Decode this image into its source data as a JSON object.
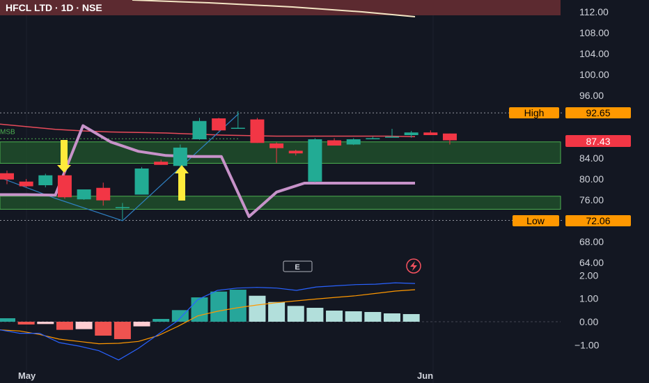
{
  "header": {
    "title": "HFCL LTD · 1D · NSE"
  },
  "price_axis": {
    "labels": [
      "112.00",
      "108.00",
      "104.00",
      "100.00",
      "96.00",
      "84.00",
      "80.00",
      "76.00",
      "68.00",
      "64.00"
    ]
  },
  "osc_axis": {
    "labels": [
      "2.00",
      "1.00",
      "0.00",
      "−1.00"
    ]
  },
  "time_axis": {
    "labels": [
      "May",
      "Jun"
    ]
  },
  "levels": {
    "high": {
      "label": "High",
      "value": "92.65"
    },
    "low": {
      "label": "Low",
      "value": "72.06"
    },
    "current": {
      "value": "87.43"
    }
  },
  "markers": {
    "msb_label": "MSB",
    "event_badge": "E"
  },
  "colors": {
    "background": "#131722",
    "up": "#22ab94",
    "down": "#f23645",
    "zone_fill": "#1f4a2a",
    "zone_border": "#4caf50",
    "tag_orange": "#ff9800",
    "current_tag": "#f23645",
    "ma_line": "#e84b5a",
    "purple_line": "#c792c9",
    "structure_line": "#2f82c4",
    "hist_dark_teal": "#26a69a",
    "hist_light_teal": "#b2dfdb",
    "hist_red": "#ef5350",
    "hist_light_red": "#ffcdd2",
    "osc_fast": "#2962ff",
    "osc_slow": "#ff9800",
    "arrow": "#ffeb3b"
  },
  "chart_data": [
    {
      "type": "candlestick",
      "title": "HFCL LTD · 1D · NSE",
      "ylim": [
        60.5,
        113.3
      ],
      "candles": [
        {
          "o": 81.1,
          "h": 81.6,
          "l": 79.0,
          "c": 79.9
        },
        {
          "o": 79.5,
          "h": 80.0,
          "l": 78.4,
          "c": 78.6
        },
        {
          "o": 78.8,
          "h": 81.0,
          "l": 78.4,
          "c": 80.7
        },
        {
          "o": 80.7,
          "h": 81.6,
          "l": 76.2,
          "c": 76.5
        },
        {
          "o": 76.1,
          "h": 78.0,
          "l": 76.0,
          "c": 78.0
        },
        {
          "o": 78.3,
          "h": 79.3,
          "l": 74.9,
          "c": 75.9
        },
        {
          "o": 74.4,
          "h": 75.4,
          "l": 72.2,
          "c": 74.6
        },
        {
          "o": 77.0,
          "h": 82.3,
          "l": 77.0,
          "c": 82.0
        },
        {
          "o": 83.3,
          "h": 83.7,
          "l": 82.7,
          "c": 82.7
        },
        {
          "o": 82.5,
          "h": 86.6,
          "l": 82.2,
          "c": 86.0
        },
        {
          "o": 87.6,
          "h": 91.7,
          "l": 87.5,
          "c": 91.1
        },
        {
          "o": 91.6,
          "h": 91.7,
          "l": 89.2,
          "c": 89.3
        },
        {
          "o": 89.6,
          "h": 93.0,
          "l": 89.6,
          "c": 89.8
        },
        {
          "o": 91.4,
          "h": 91.7,
          "l": 86.9,
          "c": 86.9
        },
        {
          "o": 86.8,
          "h": 87.0,
          "l": 83.1,
          "c": 85.9
        },
        {
          "o": 85.4,
          "h": 85.6,
          "l": 84.5,
          "c": 84.9
        },
        {
          "o": 79.5,
          "h": 87.8,
          "l": 79.4,
          "c": 87.6
        },
        {
          "o": 87.4,
          "h": 87.8,
          "l": 86.4,
          "c": 86.4
        },
        {
          "o": 86.6,
          "h": 87.8,
          "l": 86.5,
          "c": 87.6
        },
        {
          "o": 87.8,
          "h": 88.1,
          "l": 87.6,
          "c": 87.8
        },
        {
          "o": 88.1,
          "h": 89.6,
          "l": 88.0,
          "c": 88.1
        },
        {
          "o": 88.4,
          "h": 89.2,
          "l": 87.9,
          "c": 88.9
        },
        {
          "o": 88.9,
          "h": 89.3,
          "l": 88.4,
          "c": 88.4
        },
        {
          "o": 88.7,
          "h": 88.7,
          "l": 86.6,
          "c": 87.4
        }
      ],
      "levels": {
        "high": 92.65,
        "low": 72.06,
        "current": 87.43
      },
      "zones": [
        {
          "from": 83.0,
          "to": 87.1
        },
        {
          "from": 74.2,
          "to": 76.7
        }
      ],
      "moving_average": [
        90.5,
        90.0,
        89.5,
        89.2,
        89.0,
        88.9,
        88.8,
        88.6,
        88.4,
        88.3,
        88.2,
        88.2,
        88.2,
        88.2,
        88.2,
        88.1
      ],
      "purple_line": [
        77.0,
        77.0,
        76.9,
        90.2,
        87.1,
        85.3,
        84.5,
        84.3,
        84.3,
        72.8,
        77.5,
        79.2,
        79.2,
        79.2,
        79.2,
        79.2
      ],
      "structure_line": [
        87.2,
        77.2,
        72.2,
        93.7
      ]
    },
    {
      "type": "bar",
      "title": "",
      "ylim": [
        -1.7,
        2.1
      ],
      "histogram": [
        0.15,
        -0.12,
        -0.1,
        -0.35,
        -0.32,
        -0.6,
        -0.75,
        -0.2,
        0.12,
        0.5,
        1.05,
        1.3,
        1.38,
        1.12,
        0.85,
        0.68,
        0.6,
        0.48,
        0.45,
        0.42,
        0.36,
        0.33
      ],
      "fast_line": [
        -0.35,
        -0.5,
        -0.5,
        -0.9,
        -1.05,
        -1.25,
        -1.65,
        -1.15,
        -0.55,
        0.05,
        0.95,
        1.35,
        1.45,
        1.48,
        1.45,
        1.35,
        1.5,
        1.55,
        1.6,
        1.62,
        1.68,
        1.65
      ],
      "slow_line": [
        -0.35,
        -0.4,
        -0.55,
        -0.75,
        -0.85,
        -0.95,
        -0.93,
        -0.85,
        -0.6,
        -0.2,
        0.25,
        0.45,
        0.6,
        0.72,
        0.82,
        0.9,
        0.98,
        1.05,
        1.12,
        1.22,
        1.32,
        1.38
      ]
    }
  ]
}
